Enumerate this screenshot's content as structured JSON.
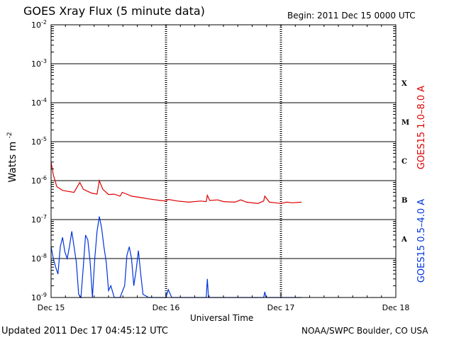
{
  "header": {
    "title": "GOES Xray Flux (5 minute data)",
    "begin": "Begin:  2011 Dec 15 0000 UTC"
  },
  "footer": {
    "updated": "Updated 2011 Dec 17 04:45:12 UTC",
    "credit": "NOAA/SWPC Boulder, CO USA"
  },
  "chart_data": {
    "type": "line",
    "xlabel": "Universal Time",
    "ylabel": "Watts m",
    "ylabel_sup": "-2",
    "yscale": "log",
    "ylim": [
      1e-09,
      0.01
    ],
    "xlim_days": [
      0,
      3
    ],
    "grid": true,
    "y_ticks": [
      {
        "base": "10",
        "exp": "-2",
        "value": 0.01
      },
      {
        "base": "10",
        "exp": "-3",
        "value": 0.001
      },
      {
        "base": "10",
        "exp": "-4",
        "value": 0.0001
      },
      {
        "base": "10",
        "exp": "-5",
        "value": 1e-05
      },
      {
        "base": "10",
        "exp": "-6",
        "value": 1e-06
      },
      {
        "base": "10",
        "exp": "-7",
        "value": 1e-07
      },
      {
        "base": "10",
        "exp": "-8",
        "value": 1e-08
      },
      {
        "base": "10",
        "exp": "-9",
        "value": 1e-09
      }
    ],
    "x_ticks": [
      {
        "label": "Dec 15",
        "day": 0
      },
      {
        "label": "Dec 16",
        "day": 1
      },
      {
        "label": "Dec 17",
        "day": 2
      },
      {
        "label": "Dec 18",
        "day": 3
      }
    ],
    "flare_classes": [
      {
        "label": "X",
        "value": 0.00032
      },
      {
        "label": "M",
        "value": 3.2e-05
      },
      {
        "label": "C",
        "value": 3.2e-06
      },
      {
        "label": "B",
        "value": 3.2e-07
      },
      {
        "label": "A",
        "value": 3.2e-08
      }
    ],
    "series": [
      {
        "name": "GOES15 1.0–8.0 A",
        "color": "#dd0000",
        "points": [
          [
            0.0,
            3e-06
          ],
          [
            0.02,
            1.4e-06
          ],
          [
            0.05,
            7e-07
          ],
          [
            0.1,
            5.6e-07
          ],
          [
            0.2,
            5e-07
          ],
          [
            0.25,
            9e-07
          ],
          [
            0.28,
            6e-07
          ],
          [
            0.35,
            4.8e-07
          ],
          [
            0.4,
            4.5e-07
          ],
          [
            0.42,
            1e-06
          ],
          [
            0.45,
            6e-07
          ],
          [
            0.5,
            4.4e-07
          ],
          [
            0.55,
            4.5e-07
          ],
          [
            0.6,
            4e-07
          ],
          [
            0.62,
            5e-07
          ],
          [
            0.65,
            4.6e-07
          ],
          [
            0.7,
            4e-07
          ],
          [
            0.8,
            3.6e-07
          ],
          [
            0.85,
            3.4e-07
          ],
          [
            0.95,
            3.1e-07
          ],
          [
            1.0,
            3e-07
          ],
          [
            1.02,
            3.3e-07
          ],
          [
            1.1,
            3e-07
          ],
          [
            1.2,
            2.8e-07
          ],
          [
            1.3,
            3e-07
          ],
          [
            1.35,
            2.9e-07
          ],
          [
            1.36,
            4.2e-07
          ],
          [
            1.38,
            3.1e-07
          ],
          [
            1.45,
            3.2e-07
          ],
          [
            1.5,
            2.9e-07
          ],
          [
            1.6,
            2.8e-07
          ],
          [
            1.65,
            3.2e-07
          ],
          [
            1.7,
            2.8e-07
          ],
          [
            1.8,
            2.6e-07
          ],
          [
            1.85,
            3e-07
          ],
          [
            1.86,
            4e-07
          ],
          [
            1.9,
            2.8e-07
          ],
          [
            1.95,
            2.7e-07
          ],
          [
            2.0,
            2.6e-07
          ],
          [
            2.05,
            2.8e-07
          ],
          [
            2.1,
            2.7e-07
          ],
          [
            2.18,
            2.8e-07
          ]
        ]
      },
      {
        "name": "GOES15 0.5–4.0 A",
        "color": "#0033dd",
        "points": [
          [
            0.0,
            2e-08
          ],
          [
            0.02,
            1e-08
          ],
          [
            0.04,
            6e-09
          ],
          [
            0.06,
            4e-09
          ],
          [
            0.08,
            2e-08
          ],
          [
            0.1,
            3.5e-08
          ],
          [
            0.12,
            1.5e-08
          ],
          [
            0.14,
            1e-08
          ],
          [
            0.16,
            2e-08
          ],
          [
            0.18,
            5e-08
          ],
          [
            0.2,
            2e-08
          ],
          [
            0.22,
            8e-09
          ],
          [
            0.24,
            1.2e-09
          ],
          [
            0.26,
            1e-09
          ],
          [
            0.28,
            6e-09
          ],
          [
            0.3,
            4e-08
          ],
          [
            0.32,
            3e-08
          ],
          [
            0.34,
            8e-09
          ],
          [
            0.36,
            1e-09
          ],
          [
            0.38,
            1e-08
          ],
          [
            0.4,
            5e-08
          ],
          [
            0.42,
            1.2e-07
          ],
          [
            0.44,
            6e-08
          ],
          [
            0.46,
            2e-08
          ],
          [
            0.48,
            8e-09
          ],
          [
            0.5,
            1.5e-09
          ],
          [
            0.52,
            2e-09
          ],
          [
            0.55,
            1e-09
          ],
          [
            0.6,
            1e-09
          ],
          [
            0.64,
            2e-09
          ],
          [
            0.66,
            1.2e-08
          ],
          [
            0.68,
            2e-08
          ],
          [
            0.7,
            1e-08
          ],
          [
            0.72,
            2e-09
          ],
          [
            0.74,
            5e-09
          ],
          [
            0.76,
            1.6e-08
          ],
          [
            0.78,
            4e-09
          ],
          [
            0.8,
            1.2e-09
          ],
          [
            0.85,
            1e-09
          ],
          [
            1.0,
            1e-09
          ],
          [
            1.02,
            1.6e-09
          ],
          [
            1.05,
            1e-09
          ],
          [
            1.35,
            1e-09
          ],
          [
            1.36,
            3e-09
          ],
          [
            1.37,
            1e-09
          ],
          [
            1.85,
            1e-09
          ],
          [
            1.86,
            1.4e-09
          ],
          [
            1.87,
            1e-09
          ],
          [
            2.18,
            1e-09
          ]
        ]
      }
    ]
  }
}
